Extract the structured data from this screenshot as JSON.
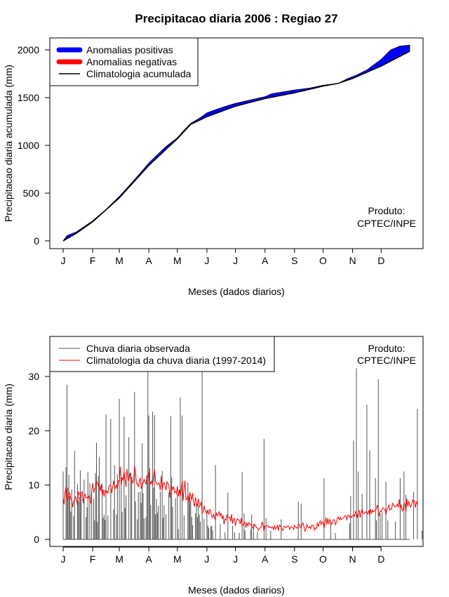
{
  "title": "Precipitacao diaria 2006 : Regiao 27",
  "credit": {
    "line1": "Produto:",
    "line2": "CPTEC/INPE"
  },
  "chart_data": [
    {
      "type": "area",
      "name": "accumulated",
      "xlabel": "Meses (dados diarios)",
      "ylabel": "Precipitacao diaria acumulada (mm)",
      "months": [
        "J",
        "F",
        "M",
        "A",
        "M",
        "J",
        "J",
        "A",
        "S",
        "O",
        "N",
        "D"
      ],
      "month_start_days": [
        1,
        32,
        60,
        91,
        121,
        152,
        182,
        213,
        244,
        274,
        305,
        335
      ],
      "xlim": [
        1,
        365
      ],
      "ylim": [
        0,
        2060
      ],
      "yticks": [
        0,
        500,
        1000,
        1500,
        2000
      ],
      "legend": [
        {
          "label": "Anomalias positivas",
          "color": "#0000ff"
        },
        {
          "label": "Anomalias negativas",
          "color": "#ff0000"
        },
        {
          "label": "Climatologia acumulada",
          "color": "#000000"
        }
      ],
      "legend_position": "top-left",
      "climatology_points": [
        [
          1,
          0
        ],
        [
          15,
          80
        ],
        [
          32,
          200
        ],
        [
          60,
          450
        ],
        [
          91,
          790
        ],
        [
          121,
          1070
        ],
        [
          135,
          1220
        ],
        [
          152,
          1300
        ],
        [
          182,
          1410
        ],
        [
          213,
          1490
        ],
        [
          244,
          1550
        ],
        [
          274,
          1620
        ],
        [
          290,
          1650
        ],
        [
          305,
          1700
        ],
        [
          335,
          1830
        ],
        [
          365,
          1985
        ]
      ],
      "observed_points": [
        [
          1,
          0
        ],
        [
          5,
          55
        ],
        [
          15,
          95
        ],
        [
          32,
          210
        ],
        [
          46,
          330
        ],
        [
          60,
          465
        ],
        [
          75,
          630
        ],
        [
          91,
          815
        ],
        [
          108,
          980
        ],
        [
          121,
          1080
        ],
        [
          128,
          1160
        ],
        [
          135,
          1230
        ],
        [
          145,
          1290
        ],
        [
          152,
          1340
        ],
        [
          160,
          1370
        ],
        [
          175,
          1420
        ],
        [
          182,
          1440
        ],
        [
          195,
          1470
        ],
        [
          213,
          1510
        ],
        [
          220,
          1540
        ],
        [
          244,
          1580
        ],
        [
          260,
          1600
        ],
        [
          274,
          1630
        ],
        [
          290,
          1650
        ],
        [
          300,
          1700
        ],
        [
          310,
          1740
        ],
        [
          320,
          1790
        ],
        [
          335,
          1900
        ],
        [
          345,
          2000
        ],
        [
          355,
          2040
        ],
        [
          365,
          2050
        ]
      ]
    },
    {
      "type": "bar",
      "name": "daily",
      "xlabel": "Meses (dados diarios)",
      "ylabel": "Precipitacao diaria (mm)",
      "months": [
        "J",
        "F",
        "M",
        "A",
        "M",
        "J",
        "J",
        "A",
        "S",
        "O",
        "N",
        "D"
      ],
      "month_start_days": [
        1,
        32,
        60,
        91,
        121,
        152,
        182,
        213,
        244,
        274,
        305,
        335
      ],
      "xlim": [
        1,
        365
      ],
      "ylim": [
        0,
        37
      ],
      "yticks": [
        0,
        10,
        20,
        30
      ],
      "legend": [
        {
          "label": "Chuva diaria observada",
          "color": "#555555"
        },
        {
          "label": "Climatologia da chuva diaria (1997-2014)",
          "color": "#ff0000"
        }
      ],
      "legend_position": "top-left",
      "observed_daily": [
        12.5,
        0.0,
        0.0,
        13.3,
        28.5,
        9.5,
        11.9,
        8.0,
        5.1,
        9.2,
        0.0,
        4.3,
        16.3,
        0.0,
        0.0,
        10.2,
        7.0,
        7.9,
        12.7,
        8.3,
        0.0,
        0.0,
        11.0,
        0.0,
        4.1,
        5.9,
        12.4,
        0.0,
        10.3,
        0.0,
        8.7,
        0.0,
        7.5,
        3.5,
        12.2,
        17.8,
        3.2,
        11.7,
        15.2,
        0.0,
        0.0,
        10.3,
        4.0,
        4.6,
        3.6,
        23.0,
        0.0,
        4.4,
        0.0,
        0.0,
        22.2,
        0.0,
        0.0,
        5.5,
        13.7,
        0.0,
        4.6,
        12.0,
        0.0,
        25.9,
        0.0,
        11.4,
        5.0,
        0.0,
        22.6,
        5.8,
        8.1,
        0.0,
        0.0,
        18.8,
        0.0,
        12.3,
        11.5,
        0.0,
        0.0,
        27.1,
        7.0,
        0.0,
        3.7,
        8.7,
        0.0,
        8.8,
        6.7,
        17.7,
        8.5,
        3.9,
        0.0,
        4.1,
        11.5,
        31.0,
        22.8,
        13.1,
        6.3,
        0.0,
        23.5,
        9.5,
        22.9,
        4.6,
        7.5,
        4.9,
        6.2,
        0.0,
        8.8,
        0.0,
        12.6,
        4.0,
        6.3,
        0.0,
        4.6,
        0.0,
        0.0,
        8.6,
        0.0,
        22.7,
        11.4,
        6.0,
        0.0,
        0.0,
        7.6,
        0.0,
        8.4,
        1.9,
        0.0,
        26.1,
        0.0,
        22.8,
        0.0,
        4.4,
        0.0,
        0.0,
        0.0,
        10.5,
        7.2,
        8.5,
        7.2,
        4.1,
        2.6,
        0.0,
        0.0,
        4.8,
        6.7,
        4.1,
        6.1,
        4.6,
        3.3,
        0.0,
        31.0,
        0.0,
        3.8,
        0.0,
        0.0,
        5.4,
        2.5,
        2.1,
        0.0,
        2.4,
        2.5,
        1.7,
        0.0,
        0.0,
        13.7,
        0.0,
        0.0,
        0.0,
        0.0,
        2.8,
        0.0,
        0.0,
        0.0,
        0.0,
        1.3,
        0.0,
        0.0,
        8.6,
        0.0,
        0.0,
        0.0,
        0.0,
        2.5,
        0.0,
        1.3,
        0.0,
        0.0,
        0.0,
        0.0,
        1.2,
        0.0,
        0.0,
        12.4,
        0.0,
        4.8,
        1.7,
        0.0,
        0.0,
        0.0,
        0.0,
        0.0,
        1.8,
        4.6,
        0.0,
        2.9,
        0.0,
        0.0,
        0.0,
        1.5,
        0.0,
        0.0,
        0.0,
        0.0,
        0.0,
        0.0,
        18.5,
        0.0,
        3.9,
        0.0,
        0.0,
        0.0,
        0.0,
        1.6,
        0.0,
        0.0,
        0.0,
        0.0,
        0.0,
        0.0,
        0.0,
        0.0,
        0.0,
        0.0,
        3.7,
        0.0,
        0.0,
        0.0,
        0.0,
        0.0,
        0.0,
        0.0,
        0.0,
        0.0,
        0.0,
        0.0,
        0.0,
        0.0,
        0.0,
        0.0,
        0.0,
        0.0,
        7.0,
        0.0,
        0.0,
        6.6,
        0.0,
        0.0,
        0.0,
        0.0,
        0.0,
        0.0,
        0.0,
        0.0,
        0.0,
        0.0,
        0.0,
        0.0,
        0.0,
        0.0,
        0.0,
        0.0,
        0.0,
        0.0,
        0.0,
        0.0,
        0.0,
        0.0,
        0.0,
        11.3,
        0.0,
        0.0,
        0.0,
        0.0,
        0.0,
        0.0,
        3.5,
        0.0,
        0.0,
        0.0,
        0.0,
        1.2,
        0.0,
        0.0,
        0.0,
        0.0,
        0.0,
        0.0,
        0.0,
        0.0,
        0.0,
        0.0,
        0.0,
        0.0,
        0.0,
        0.0,
        3.0,
        8.0,
        0.0,
        0.0,
        18.2,
        0.0,
        0.0,
        31.5,
        0.0,
        12.5,
        0.0,
        0.0,
        0.0,
        8.4,
        0.0,
        0.0,
        0.0,
        0.0,
        24.8,
        0.0,
        0.0,
        16.4,
        0.0,
        0.0,
        0.0,
        0.0,
        0.0,
        11.3,
        3.5,
        0.0,
        29.5,
        0.0,
        4.6,
        0.0,
        5.0,
        0.0,
        0.0,
        0.0,
        10.6,
        0.0,
        3.5,
        0.0,
        0.0,
        0.0,
        0.0,
        0.0,
        0.0,
        0.0,
        3.3,
        0.0,
        0.0,
        0.0,
        0.0,
        11.3,
        0.0,
        0.0,
        0.0,
        12.5,
        0.0,
        8.2,
        0.0,
        0.0,
        0.0,
        0.0,
        0.0,
        0.0,
        0.0,
        8.8,
        0.0,
        0.0,
        0.0,
        24.0,
        0.0,
        0.0,
        0.0,
        0.0,
        1.6,
        0.0,
        0.0,
        0.0,
        0.0,
        0.0,
        0.0,
        0.0,
        0.0,
        0.0,
        0.0,
        0.0,
        0.0,
        0.0
      ],
      "climatology_daily": [
        7.57,
        6.44,
        8.75,
        9.65,
        7.44,
        7.3,
        8.48,
        8.56,
        7.5,
        7.29,
        5.96,
        7.03,
        7.35,
        7.81,
        7.29,
        6.37,
        8.83,
        8.31,
        8.15,
        8.58,
        8.79,
        6.69,
        8.14,
        8.3,
        7.61,
        7.75,
        7.58,
        7.94,
        7.03,
        6.73,
        9.04,
        10.37,
        8.59,
        9.34,
        9.35,
        10.68,
        10.39,
        9.82,
        10.17,
        8.92,
        10.13,
        8.04,
        9.22,
        7.86,
        9.02,
        8.58,
        8.87,
        8.49,
        9.59,
        9.97,
        10.03,
        8.54,
        9.52,
        10.82,
        9.71,
        9.39,
        10.08,
        9.27,
        10.82,
        10.69,
        13.42,
        9.95,
        11.35,
        10.99,
        12.54,
        11.02,
        9.65,
        13.01,
        11.23,
        10.72,
        12.26,
        11.1,
        11.32,
        10.39,
        10.88,
        13.48,
        12.39,
        10.24,
        10.24,
        9.64,
        10.69,
        11.36,
        9.3,
        9.93,
        10.29,
        11.12,
        10.52,
        10.25,
        11.71,
        11.48,
        12.45,
        10.76,
        10.22,
        10.76,
        9.94,
        11.56,
        12.9,
        10.99,
        10.27,
        10.04,
        10.32,
        10.37,
        9.05,
        11.72,
        9.14,
        10.14,
        10.47,
        9.76,
        9.05,
        10.6,
        10.2,
        10.16,
        7.69,
        9.48,
        9.76,
        9.21,
        9.78,
        8.65,
        8.87,
        8.47,
        9.79,
        7.9,
        9.19,
        7.96,
        9.35,
        10.79,
        7.1,
        9.22,
        10.84,
        7.32,
        7.43,
        8.15,
        6.95,
        8.64,
        8.14,
        7.24,
        8.52,
        6.76,
        6.04,
        7.77,
        6.89,
        6.06,
        7.51,
        6.01,
        6.25,
        6.91,
        4.82,
        5.09,
        6.23,
        5.38,
        5.13,
        4.73,
        5.3,
        4.59,
        5.53,
        5.31,
        4.18,
        4.04,
        4.73,
        3.87,
        3.67,
        4.93,
        4.38,
        4.55,
        5.16,
        4.29,
        4.82,
        3.76,
        4.41,
        2.79,
        3.79,
        3.56,
        4.48,
        3.99,
        4.06,
        4.12,
        3.33,
        4.64,
        2.88,
        3.84,
        3.85,
        2.48,
        3.52,
        3.79,
        3.61,
        3.48,
        2.83,
        3.94,
        2.48,
        2.7,
        2.98,
        3.18,
        2.19,
        3.12,
        2.5,
        3.12,
        2.82,
        2.64,
        2.8,
        2.09,
        2.07,
        2.73,
        2.59,
        2.13,
        2.13,
        1.71,
        1.97,
        2.11,
        2.27,
        3.26,
        2.51,
        1.54,
        2.44,
        2.4,
        2.53,
        2.58,
        2.18,
        2.36,
        2.28,
        2.07,
        2.28,
        1.76,
        2.58,
        1.92,
        2.09,
        2.65,
        1.66,
        2.66,
        2.52,
        2.26,
        1.83,
        1.65,
        2.43,
        2.35,
        2.15,
        2.3,
        2.49,
        2.37,
        1.86,
        2.33,
        2.21,
        2.2,
        1.81,
        2.61,
        2.27,
        2.19,
        2.04,
        2.66,
        2.79,
        2.14,
        2.13,
        2.83,
        3.04,
        2.25,
        1.51,
        1.94,
        2.76,
        2.28,
        2.11,
        2.37,
        1.95,
        2.66,
        2.54,
        2.6,
        1.69,
        2.1,
        2.02,
        3.1,
        2.43,
        3.02,
        3.41,
        2.74,
        3.2,
        3.16,
        2.06,
        2.88,
        4.05,
        2.72,
        3.91,
        2.78,
        3.65,
        3.42,
        2.74,
        3.04,
        3.65,
        3.58,
        2.63,
        3.16,
        3.9,
        4.13,
        3.61,
        4.09,
        3.64,
        3.77,
        3.86,
        4.04,
        4.4,
        4.34,
        3.53,
        4.45,
        4.41,
        4.04,
        4.29,
        4.06,
        4.41,
        4.54,
        4.27,
        5.12,
        4.89,
        4.02,
        5.16,
        5.29,
        4.03,
        5.11,
        5.55,
        4.88,
        4.73,
        5.0,
        5.08,
        4.74,
        4.65,
        5.37,
        4.37,
        5.53,
        4.82,
        5.43,
        5.07,
        5.25,
        5.32,
        5.63,
        6.33,
        5.31,
        4.31,
        5.19,
        5.14,
        5.53,
        5.83,
        5.68,
        5.5,
        4.58,
        5.45,
        5.74,
        6.4,
        5.4,
        5.61,
        5.59,
        6.66,
        6.39,
        5.99,
        6.09,
        6.1,
        6.5,
        5.9,
        7.42,
        5.58,
        6.41,
        5.24,
        5.36,
        6.61,
        6.57,
        5.09,
        7.49,
        6.06,
        7.04,
        6.39,
        5.97,
        6.4,
        7.25,
        7.04,
        7.09,
        5.84,
        6.91,
        6.53,
        6.48
      ]
    }
  ]
}
